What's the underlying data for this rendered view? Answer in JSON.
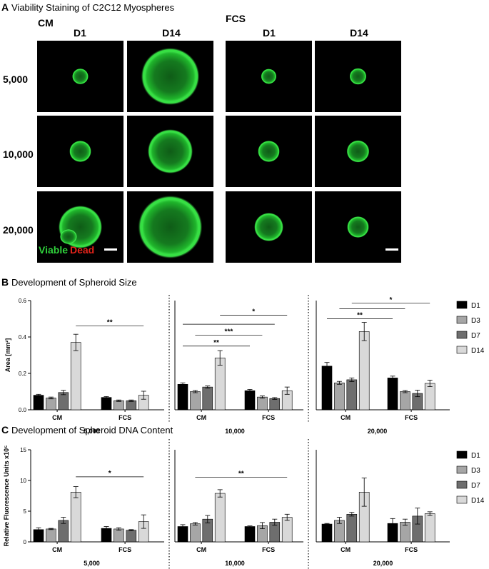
{
  "panelA": {
    "letter": "A",
    "title": "Viability Staining of C2C12 Myospheres",
    "groups": [
      "CM",
      "FCS"
    ],
    "days": [
      "D1",
      "D14"
    ],
    "rows": [
      "5,000",
      "10,000",
      "20,000"
    ],
    "legend": {
      "viable": "Viable",
      "dead": "Dead"
    },
    "colors": {
      "viable": "#2fd13b",
      "dead": "#e2231a",
      "background": "#000000"
    },
    "spheres_relative_size": [
      [
        0.22,
        0.8,
        0.21,
        0.23
      ],
      [
        0.3,
        0.62,
        0.3,
        0.31
      ],
      [
        0.6,
        0.88,
        0.4,
        0.3
      ]
    ]
  },
  "panelB": {
    "letter": "B",
    "title": "Development of Spheroid Size"
  },
  "panelC": {
    "letter": "C",
    "title": "Development of Spheroid DNA Content"
  },
  "legend": [
    "D1",
    "D3",
    "D7",
    "D14"
  ],
  "series_colors": [
    "#000000",
    "#a6a6a6",
    "#6e6e6e",
    "#d9d9d9"
  ],
  "chart_data": [
    {
      "type": "bar",
      "panel": "B",
      "ylabel": "Area [mm²]",
      "ylim": [
        0,
        0.6
      ],
      "yticks": [
        "0.0",
        "0.2",
        "0.4",
        "0.6"
      ],
      "series_names": [
        "D1",
        "D3",
        "D7",
        "D14"
      ],
      "groups": [
        {
          "density": "5,000",
          "media": [
            {
              "label": "CM",
              "values": [
                0.08,
                0.065,
                0.095,
                0.37
              ],
              "errors": [
                0.005,
                0.005,
                0.012,
                0.045
              ]
            },
            {
              "label": "FCS",
              "values": [
                0.068,
                0.05,
                0.05,
                0.08
              ],
              "errors": [
                0.005,
                0.004,
                0.004,
                0.022
              ]
            }
          ],
          "significance": [
            {
              "from": [
                0,
                3
              ],
              "to": [
                1,
                3
              ],
              "y": 0.46,
              "label": "**"
            }
          ]
        },
        {
          "density": "10,000",
          "media": [
            {
              "label": "CM",
              "values": [
                0.14,
                0.1,
                0.125,
                0.285
              ],
              "errors": [
                0.008,
                0.006,
                0.006,
                0.04
              ]
            },
            {
              "label": "FCS",
              "values": [
                0.105,
                0.07,
                0.062,
                0.105
              ],
              "errors": [
                0.007,
                0.006,
                0.005,
                0.02
              ]
            }
          ],
          "significance": [
            {
              "from": [
                0,
                0
              ],
              "to": [
                1,
                0
              ],
              "y": 0.35,
              "label": "**"
            },
            {
              "from": [
                0,
                1
              ],
              "to": [
                1,
                1
              ],
              "y": 0.41,
              "label": "***"
            },
            {
              "from": [
                0,
                0
              ],
              "to": [
                1,
                2
              ],
              "y": 0.47,
              "label": ""
            },
            {
              "from": [
                0,
                3
              ],
              "to": [
                1,
                3
              ],
              "y": 0.52,
              "label": "*"
            }
          ]
        },
        {
          "density": "20,000",
          "media": [
            {
              "label": "CM",
              "values": [
                0.24,
                0.148,
                0.165,
                0.43
              ],
              "errors": [
                0.02,
                0.008,
                0.01,
                0.05
              ]
            },
            {
              "label": "FCS",
              "values": [
                0.175,
                0.1,
                0.09,
                0.145
              ],
              "errors": [
                0.01,
                0.006,
                0.018,
                0.018
              ]
            }
          ],
          "significance": [
            {
              "from": [
                0,
                0
              ],
              "to": [
                1,
                0
              ],
              "y": 0.5,
              "label": "**"
            },
            {
              "from": [
                0,
                1
              ],
              "to": [
                1,
                1
              ],
              "y": 0.555,
              "label": ""
            },
            {
              "from": [
                0,
                2
              ],
              "to": [
                1,
                3
              ],
              "y": 0.585,
              "label": "*"
            }
          ]
        }
      ]
    },
    {
      "type": "bar",
      "panel": "C",
      "ylabel": "Relative Fluorescence Units x10⁵",
      "ylim": [
        0,
        15
      ],
      "yticks": [
        "0",
        "5",
        "10",
        "15"
      ],
      "series_names": [
        "D1",
        "D3",
        "D7",
        "D14"
      ],
      "groups": [
        {
          "density": "5,000",
          "media": [
            {
              "label": "CM",
              "values": [
                2.0,
                2.1,
                3.5,
                8.1
              ],
              "errors": [
                0.3,
                0.1,
                0.5,
                0.9
              ]
            },
            {
              "label": "FCS",
              "values": [
                2.2,
                2.1,
                1.9,
                3.3
              ],
              "errors": [
                0.3,
                0.2,
                0.1,
                1.1
              ]
            }
          ],
          "significance": [
            {
              "from": [
                0,
                3
              ],
              "to": [
                1,
                3
              ],
              "y": 10.6,
              "label": "*"
            }
          ]
        },
        {
          "density": "10,000",
          "media": [
            {
              "label": "CM",
              "values": [
                2.5,
                2.95,
                3.7,
                7.9
              ],
              "errors": [
                0.3,
                0.2,
                0.6,
                0.6
              ]
            },
            {
              "label": "FCS",
              "values": [
                2.5,
                2.65,
                3.2,
                4.0
              ],
              "errors": [
                0.1,
                0.5,
                0.5,
                0.5
              ]
            }
          ],
          "significance": [
            {
              "from": [
                0,
                1
              ],
              "to": [
                1,
                3
              ],
              "y": 10.5,
              "label": "**"
            }
          ]
        },
        {
          "density": "20,000",
          "media": [
            {
              "label": "CM",
              "values": [
                2.9,
                3.5,
                4.5,
                8.1
              ],
              "errors": [
                0.1,
                0.5,
                0.3,
                2.3
              ]
            },
            {
              "label": "FCS",
              "values": [
                3.0,
                3.2,
                4.2,
                4.6
              ],
              "errors": [
                0.8,
                0.5,
                1.3,
                0.3
              ]
            }
          ],
          "significance": []
        }
      ]
    }
  ]
}
